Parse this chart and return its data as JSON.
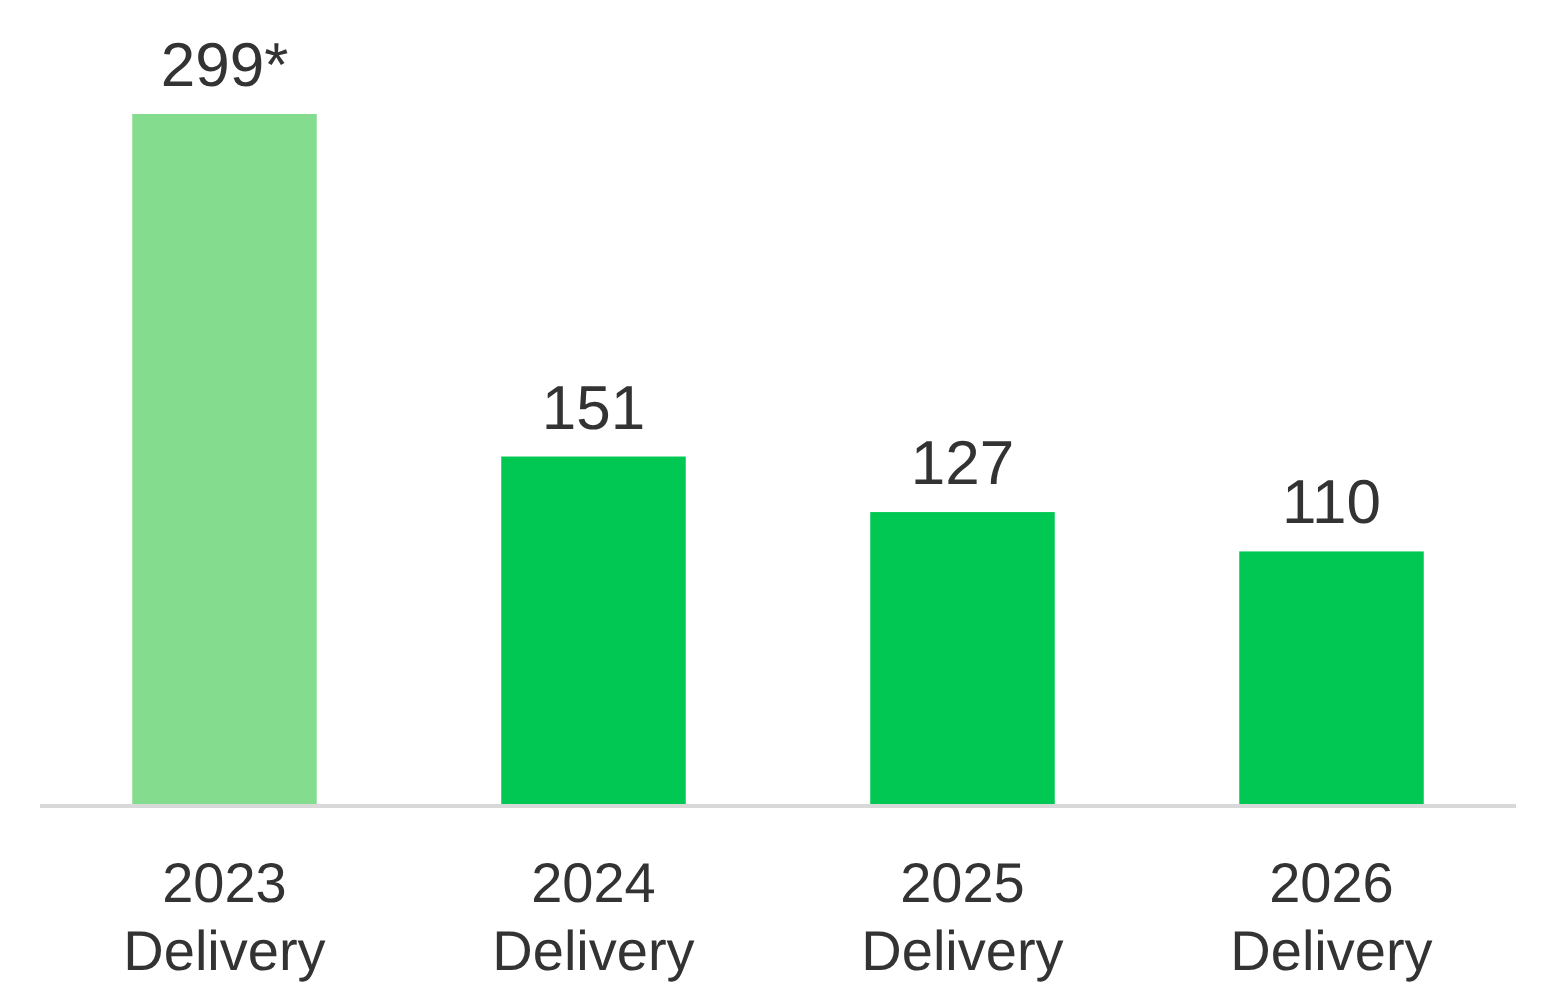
{
  "chart_data": {
    "type": "bar",
    "categories": [
      "2023 Delivery",
      "2024 Delivery",
      "2025 Delivery",
      "2026 Delivery"
    ],
    "values": [
      299,
      151,
      127,
      110
    ],
    "colors": [
      "#84dc8f",
      "#00c853",
      "#00c853",
      "#00c853"
    ],
    "value_labels": [
      "299*",
      "151",
      "127",
      "110"
    ]
  }
}
